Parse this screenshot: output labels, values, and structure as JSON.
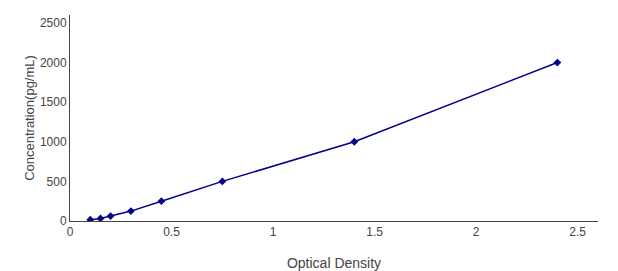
{
  "chart_data": {
    "type": "line",
    "x": [
      0.1,
      0.15,
      0.2,
      0.3,
      0.45,
      0.75,
      1.4,
      2.4
    ],
    "values": [
      15.6,
      31.25,
      62.5,
      125,
      250,
      500,
      1000,
      2000
    ],
    "color": "#00008B",
    "marker": "diamond",
    "line_style": "solid",
    "xlabel": "Optical Density",
    "ylabel": "Concentration(pg/mL)",
    "xlim": [
      0,
      2.6
    ],
    "ylim": [
      0,
      2600
    ],
    "xticks": [
      0,
      0.5,
      1,
      1.5,
      2,
      2.5
    ],
    "yticks": [
      0,
      500,
      1000,
      1500,
      2000,
      2500
    ],
    "grid": false
  }
}
